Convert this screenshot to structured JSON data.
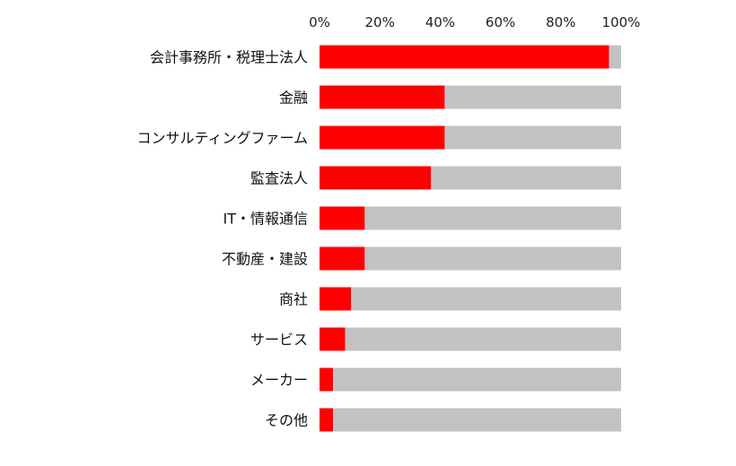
{
  "chart_data": {
    "type": "bar",
    "orientation": "horizontal",
    "stacked": true,
    "categories": [
      "会計事務所・税理士法人",
      "金融",
      "コンサルティングファーム",
      "監査法人",
      "IT・情報通信",
      "不動産・建設",
      "商社",
      "サービス",
      "メーカー",
      "その他"
    ],
    "series": [
      {
        "name": "share",
        "color": "#ff0000",
        "values": [
          96,
          41.5,
          41.5,
          37,
          15,
          15,
          10.5,
          8.5,
          4.5,
          4.5
        ]
      },
      {
        "name": "remainder",
        "color": "#c3c1c2",
        "values": [
          4,
          58.5,
          58.5,
          63,
          85,
          85,
          89.5,
          91.5,
          95.5,
          95.5
        ]
      }
    ],
    "xlim": [
      0,
      100
    ],
    "xticks": [
      "0%",
      "20%",
      "40%",
      "60%",
      "80%",
      "100%"
    ],
    "xaxis_position": "top",
    "grid": false,
    "legend": "none"
  }
}
